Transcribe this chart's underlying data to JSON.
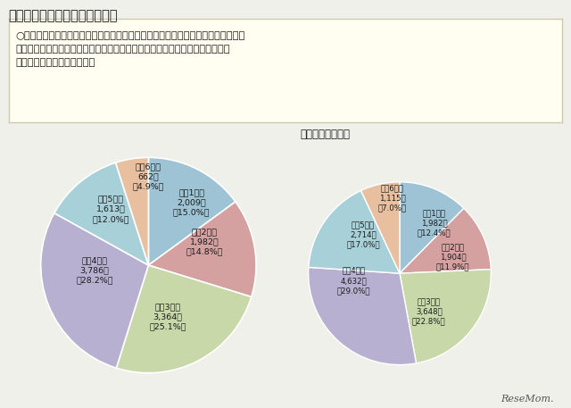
{
  "title": "７．待機児童数の学年別の状況",
  "note_text": "○　待機児童数の学年別の状況でみると、低学年（小学１年生から小学３年生）は\n　　前年比で１７９人減少、高学年（小学４年生から小学６年生）は前年比で\n　　２，４００人減少した。",
  "chart2_title": "（参考）令和２年",
  "chart1_values": [
    2009,
    1982,
    3364,
    3786,
    1613,
    662
  ],
  "chart1_pcts": [
    "15.0%",
    "14.8%",
    "25.1%",
    "28.2%",
    "12.0%",
    "4.9%"
  ],
  "chart1_counts_fmt": [
    "2,009人",
    "1,982人",
    "3,364人",
    "3,786人",
    "1,613人",
    "662人"
  ],
  "chart2_values": [
    1982,
    1904,
    3648,
    4632,
    2714,
    1115
  ],
  "chart2_pcts": [
    "12.4%",
    "11.9%",
    "22.8%",
    "29.0%",
    "17.0%",
    "7.0%"
  ],
  "chart2_counts_fmt": [
    "1,982人",
    "1,904人",
    "3,648人",
    "4,632人",
    "2,714人",
    "1,115人"
  ],
  "labels": [
    "小学1年生",
    "小学2年生",
    "小学3年生",
    "小学4年生",
    "小学5年生",
    "小学6年生"
  ],
  "colors": [
    "#9DC3D4",
    "#D4A0A0",
    "#C8D8A8",
    "#B8B0D0",
    "#A8D0D8",
    "#E8C0A0"
  ],
  "background_color": "#F0F0EB",
  "note_bg": "#FFFEF0",
  "note_border": "#CCCCAA"
}
